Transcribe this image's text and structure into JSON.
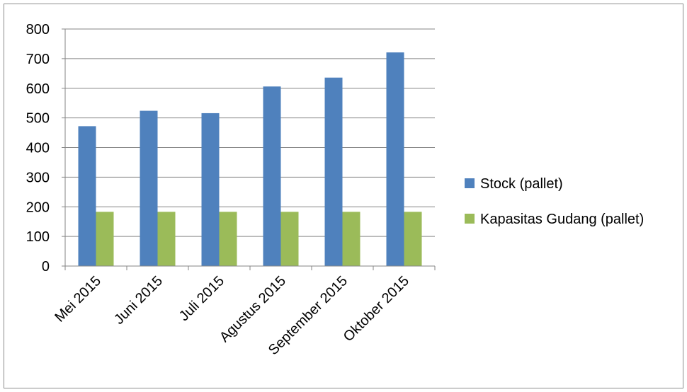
{
  "chart_data": {
    "type": "bar",
    "title": "",
    "xlabel": "",
    "ylabel": "",
    "categories": [
      "Mei 2015",
      "Juni 2015",
      "Juli 2015",
      "Agustus 2015",
      "September 2015",
      "Oktober 2015"
    ],
    "series": [
      {
        "name": "Stock (pallet)",
        "color": "#4f81bd",
        "values": [
          472,
          524,
          516,
          606,
          636,
          721
        ]
      },
      {
        "name": "Kapasitas Gudang (pallet)",
        "color": "#9bbb59",
        "values": [
          183,
          183,
          183,
          183,
          183,
          183
        ]
      }
    ],
    "ylim": [
      0,
      800
    ],
    "yticks": [
      0,
      100,
      200,
      300,
      400,
      500,
      600,
      700,
      800
    ],
    "grid": true,
    "legend_position": "right"
  }
}
